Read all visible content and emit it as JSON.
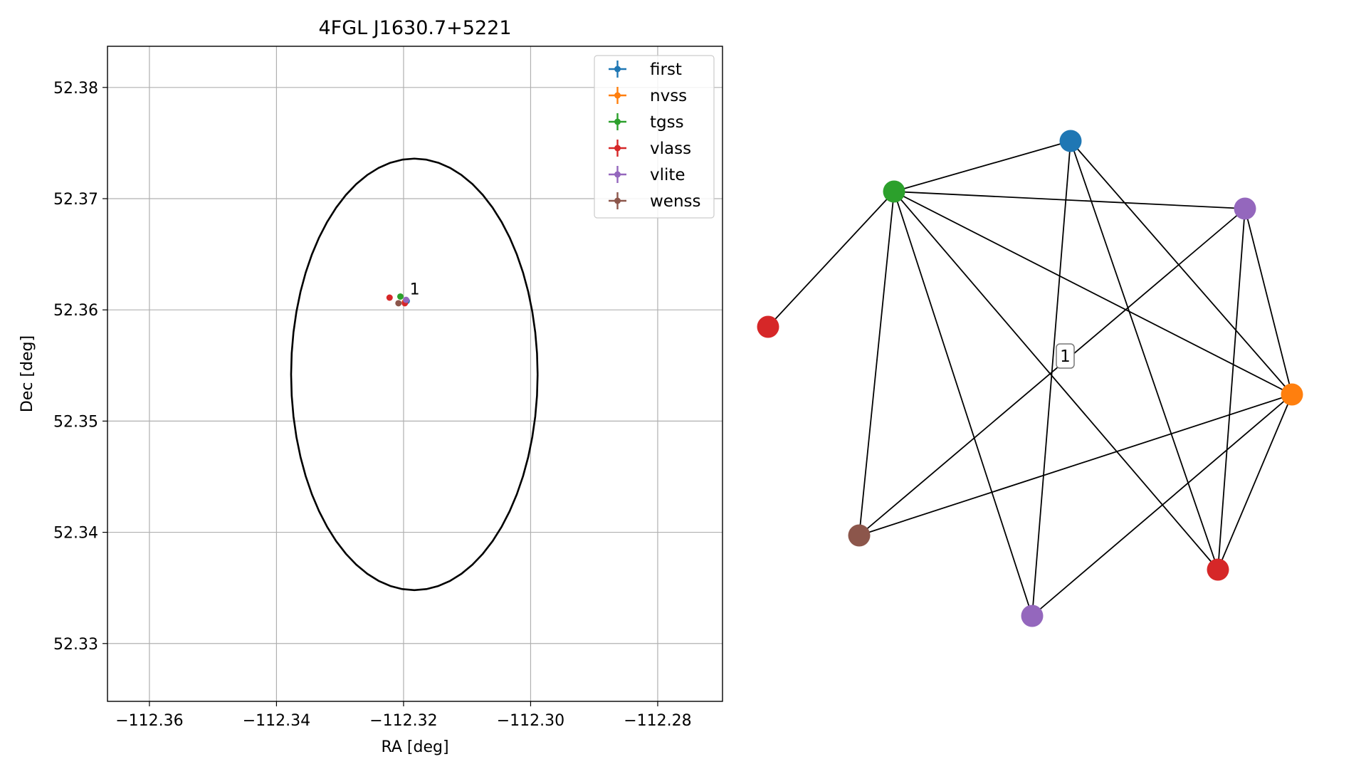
{
  "chart_data": [
    {
      "type": "scatter",
      "title": "4FGL J1630.7+5221",
      "xlabel": "RA [deg]",
      "ylabel": "Dec [deg]",
      "xlim": [
        -112.3666,
        -112.2698
      ],
      "ylim": [
        52.3248,
        52.3837
      ],
      "xticks": [
        -112.36,
        -112.34,
        -112.32,
        -112.3,
        -112.28
      ],
      "xtick_labels": [
        "−112.36",
        "−112.34",
        "−112.32",
        "−112.30",
        "−112.28"
      ],
      "yticks": [
        52.33,
        52.34,
        52.35,
        52.36,
        52.37,
        52.38
      ],
      "ytick_labels": [
        "52.33",
        "52.34",
        "52.35",
        "52.36",
        "52.37",
        "52.38"
      ],
      "grid": true,
      "legend_position": "top-right",
      "legend": [
        "first",
        "nvss",
        "tgss",
        "vlass",
        "vlite",
        "wenss"
      ],
      "circle": {
        "center_ra": -112.3183,
        "center_dec": 52.3542,
        "radius_deg": 0.0194,
        "color": "#000000"
      },
      "series": [
        {
          "name": "first",
          "color": "#1f77b4",
          "points": [
            [
              -112.3195,
              52.3608
            ]
          ]
        },
        {
          "name": "nvss",
          "color": "#ff7f0e",
          "points": [
            [
              -112.3198,
              52.3607
            ]
          ]
        },
        {
          "name": "tgss",
          "color": "#2ca02c",
          "points": [
            [
              -112.3205,
              52.3612
            ]
          ]
        },
        {
          "name": "vlass",
          "color": "#d62728",
          "points": [
            [
              -112.3222,
              52.3611
            ],
            [
              -112.3198,
              52.3606
            ]
          ]
        },
        {
          "name": "vlite",
          "color": "#9467bd",
          "points": [
            [
              -112.3196,
              52.3609
            ]
          ]
        },
        {
          "name": "wenss",
          "color": "#8c564b",
          "points": [
            [
              -112.3208,
              52.3606
            ]
          ]
        }
      ],
      "annotations": [
        {
          "text": "1",
          "ra": -112.3197,
          "dec": 52.361
        }
      ]
    },
    {
      "type": "network",
      "nodes": [
        {
          "id": "n0",
          "color": "#1f77b4"
        },
        {
          "id": "n1",
          "color": "#2ca02c"
        },
        {
          "id": "n2",
          "color": "#9467bd"
        },
        {
          "id": "n3",
          "color": "#d62728"
        },
        {
          "id": "n4",
          "color": "#ff7f0e"
        },
        {
          "id": "n5",
          "color": "#8c564b"
        },
        {
          "id": "n6",
          "color": "#d62728"
        },
        {
          "id": "n7",
          "color": "#9467bd"
        }
      ],
      "edges": [
        [
          "n0",
          "n1"
        ],
        [
          "n0",
          "n4"
        ],
        [
          "n0",
          "n6"
        ],
        [
          "n0",
          "n7"
        ],
        [
          "n1",
          "n2"
        ],
        [
          "n1",
          "n3"
        ],
        [
          "n1",
          "n4"
        ],
        [
          "n1",
          "n5"
        ],
        [
          "n1",
          "n6"
        ],
        [
          "n1",
          "n7"
        ],
        [
          "n2",
          "n4"
        ],
        [
          "n2",
          "n5"
        ],
        [
          "n2",
          "n6"
        ],
        [
          "n4",
          "n5"
        ],
        [
          "n4",
          "n6"
        ],
        [
          "n4",
          "n7"
        ]
      ],
      "label": "1"
    }
  ]
}
